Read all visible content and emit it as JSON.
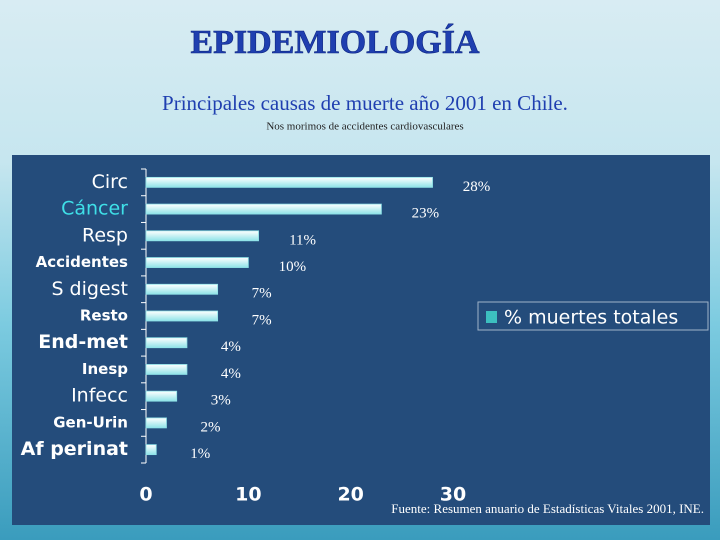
{
  "chart_data": {
    "type": "barh",
    "heading": "EPIDEMIOLOGÍA",
    "title": "Principales causas de muerte año 2001 en Chile.",
    "subtitle": "Nos morimos de accidentes cardiovasculares",
    "source": "Fuente: Resumen anuario de Estadísticas Vitales 2001, INE.",
    "categories": [
      "Circ",
      "Cáncer",
      "Resp",
      "Accidentes",
      "S digest",
      "Resto",
      "End-met",
      "Inesp",
      "Infecc",
      "Gen-Urin",
      "Af perinat"
    ],
    "series": [
      {
        "name": "% muertes totales",
        "color": "#8fe3e8",
        "values": [
          28,
          23,
          11,
          10,
          7,
          7,
          4,
          4,
          3,
          2,
          1
        ],
        "value_labels": [
          "28%",
          "23%",
          "11%",
          "10%",
          "7%",
          "7%",
          "4%",
          "4%",
          "3%",
          "2%",
          "1%"
        ]
      }
    ],
    "xlim": [
      0,
      30
    ],
    "xticks": [
      0,
      10,
      20,
      30
    ],
    "grid": false,
    "legend": "right"
  }
}
